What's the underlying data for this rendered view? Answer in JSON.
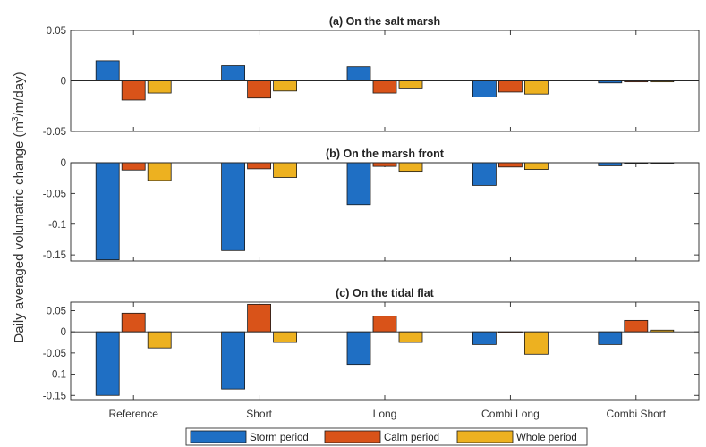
{
  "figure": {
    "ylabel_main": "Daily averaged volumatric change (m",
    "ylabel_sup": "3",
    "ylabel_tail": "/m/day)"
  },
  "legend": [
    {
      "label": "Storm period",
      "color": "#1f6fc4"
    },
    {
      "label": "Calm period",
      "color": "#d95319"
    },
    {
      "label": "Whole period",
      "color": "#edb120"
    }
  ],
  "chart_data": [
    {
      "type": "bar",
      "title": "(a)  On the salt marsh",
      "categories": [
        "Reference",
        "Short",
        "Long",
        "Combi Long",
        "Combi Short"
      ],
      "ylim": [
        -0.05,
        0.05
      ],
      "yticks": [
        -0.05,
        0,
        0.05
      ],
      "ytick_labels": [
        "-0.05",
        "0",
        "0.05"
      ],
      "show_xticklabels": false,
      "series": [
        {
          "name": "Storm period",
          "values": [
            0.02,
            0.015,
            0.014,
            -0.016,
            -0.002
          ]
        },
        {
          "name": "Calm period",
          "values": [
            -0.019,
            -0.017,
            -0.012,
            -0.011,
            -0.001
          ]
        },
        {
          "name": "Whole period",
          "values": [
            -0.012,
            -0.01,
            -0.007,
            -0.013,
            -0.001
          ]
        }
      ]
    },
    {
      "type": "bar",
      "title": "(b)  On the marsh front",
      "categories": [
        "Reference",
        "Short",
        "Long",
        "Combi Long",
        "Combi Short"
      ],
      "ylim": [
        -0.16,
        0
      ],
      "yticks": [
        -0.15,
        -0.1,
        -0.05,
        0
      ],
      "ytick_labels": [
        "-0.15",
        "-0.1",
        "-0.05",
        "0"
      ],
      "show_xticklabels": false,
      "series": [
        {
          "name": "Storm period",
          "values": [
            -0.158,
            -0.143,
            -0.068,
            -0.037,
            -0.005
          ]
        },
        {
          "name": "Calm period",
          "values": [
            -0.012,
            -0.01,
            -0.006,
            -0.007,
            0
          ]
        },
        {
          "name": "Whole period",
          "values": [
            -0.029,
            -0.024,
            -0.014,
            -0.011,
            0
          ]
        }
      ]
    },
    {
      "type": "bar",
      "title": "(c)  On the tidal flat",
      "categories": [
        "Reference",
        "Short",
        "Long",
        "Combi Long",
        "Combi Short"
      ],
      "ylim": [
        -0.16,
        0.07
      ],
      "yticks": [
        -0.15,
        -0.1,
        -0.05,
        0,
        0.05
      ],
      "ytick_labels": [
        "-0.15",
        "-0.1",
        "-0.05",
        "0",
        "0.05"
      ],
      "show_xticklabels": true,
      "series": [
        {
          "name": "Storm period",
          "values": [
            -0.15,
            -0.135,
            -0.077,
            -0.03,
            -0.03
          ]
        },
        {
          "name": "Calm period",
          "values": [
            0.044,
            0.065,
            0.037,
            -0.002,
            0.027
          ]
        },
        {
          "name": "Whole period",
          "values": [
            -0.038,
            -0.025,
            -0.025,
            -0.053,
            0.004
          ]
        }
      ]
    }
  ]
}
